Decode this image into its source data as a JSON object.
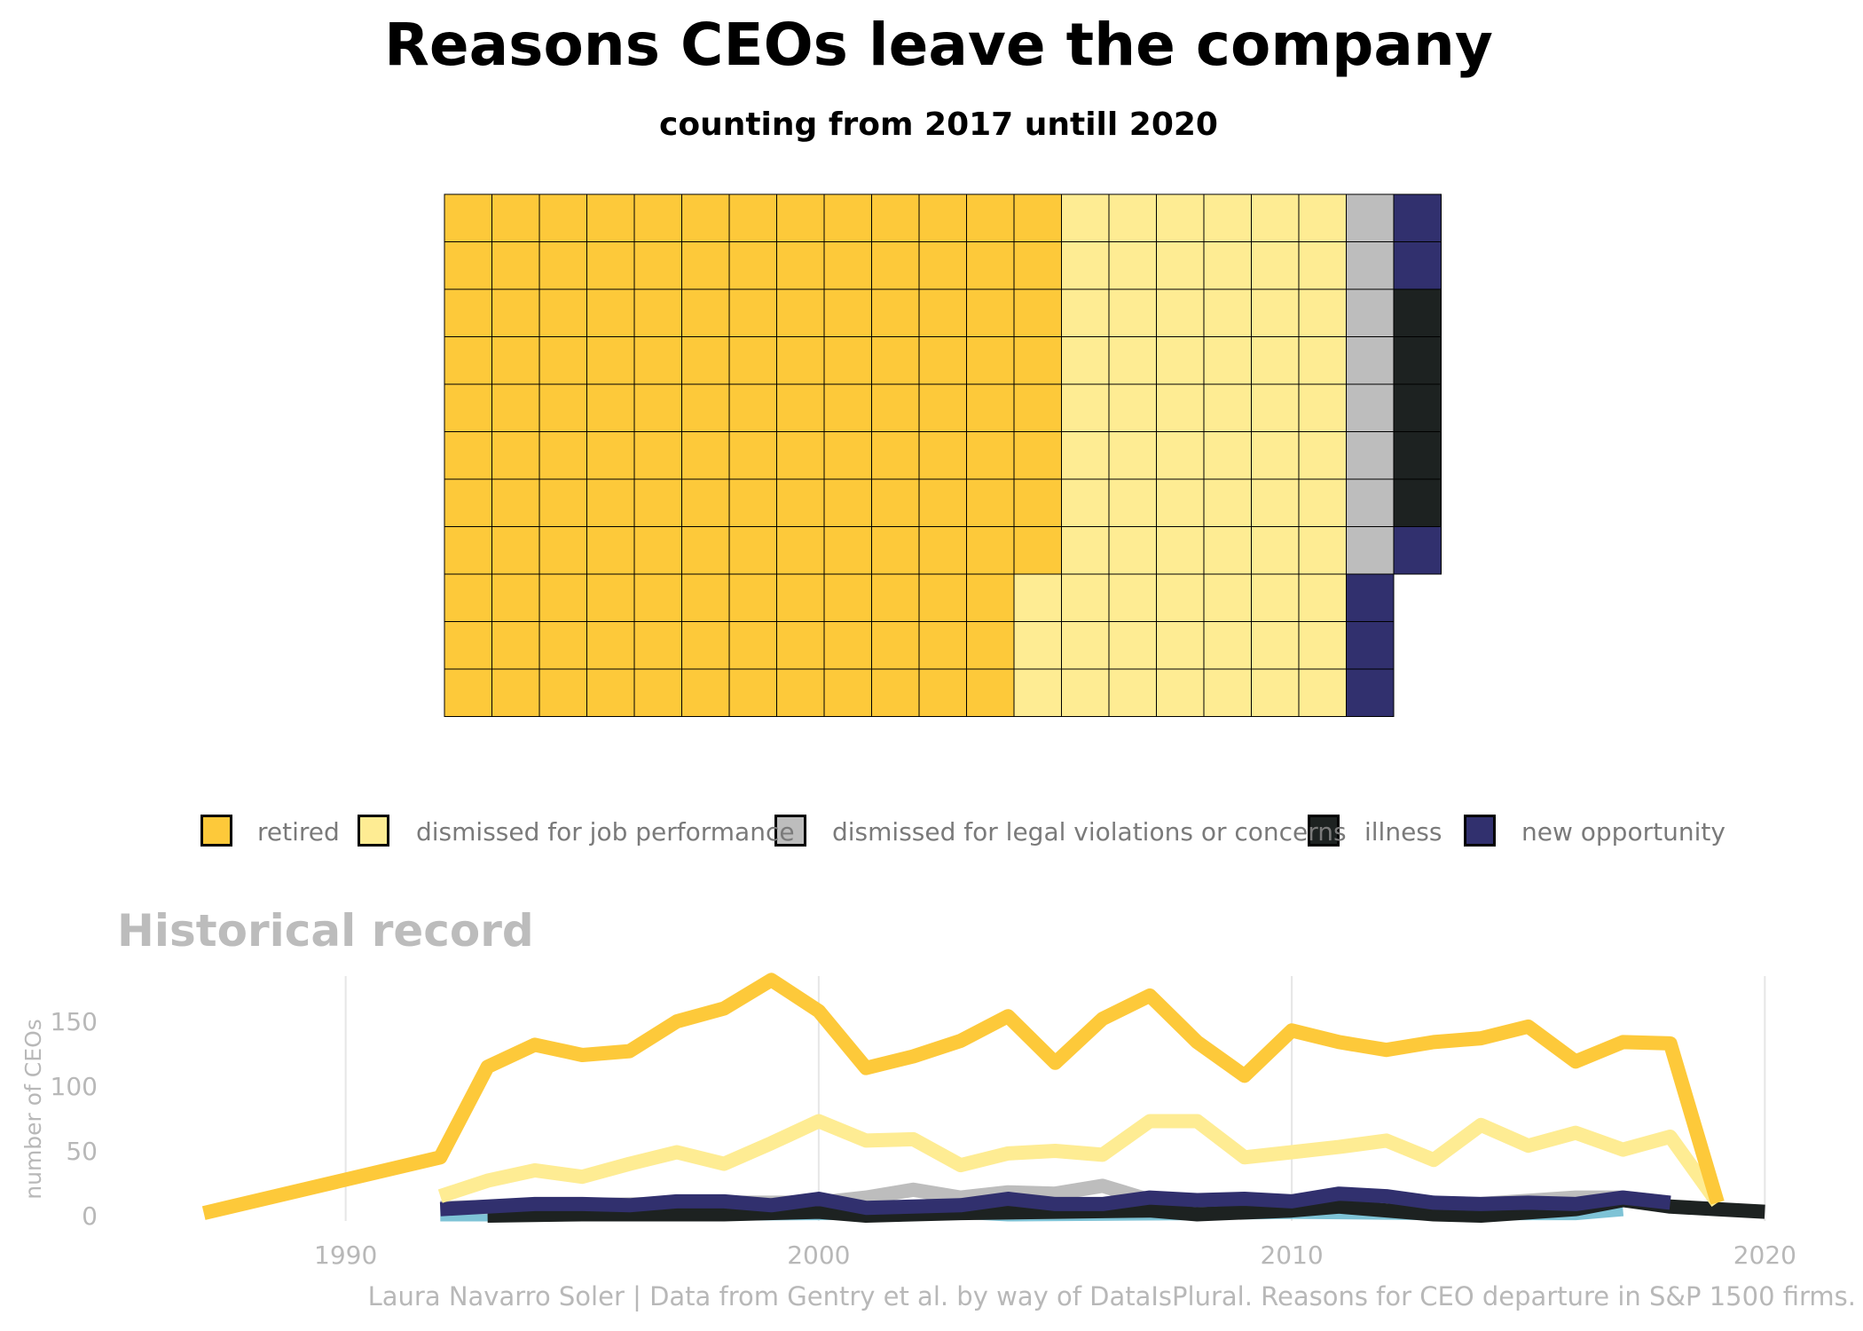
{
  "title": "Reasons CEOs leave the company",
  "subtitle": "counting from 2017 untill 2020",
  "colors": {
    "retired": "#FDC93A",
    "dismissed_job": "#FEEC93",
    "dismissed_legal": "#BDBDBD",
    "illness": "#1D2221",
    "new_opportunity": "#31306E",
    "other": "#7EC3D6"
  },
  "legend": [
    {
      "label": "retired",
      "color": "#FDC93A"
    },
    {
      "label": "dismissed for job performance",
      "color": "#FEEC93"
    },
    {
      "label": "dismissed for legal violations or concerns",
      "color": "#BDBDBD"
    },
    {
      "label": "illness",
      "color": "#1D2221"
    },
    {
      "label": "new opportunity",
      "color": "#31306E"
    }
  ],
  "section_title": "Historical record",
  "caption": "Laura Navarro Soler | Data from Gentry et al. by way of DataIsPlural. Reasons for CEO departure in S&P 1500 firms.",
  "chart_data": [
    {
      "type": "waffle",
      "rows": 11,
      "fill_order": "column-major, top to bottom",
      "categories": [
        "retired",
        "dismissed for job performance",
        "dismissed for legal violations or concerns",
        "new opportunity",
        "illness",
        "new opportunity"
      ],
      "values": [
        140,
        69,
        8,
        5,
        5,
        1
      ],
      "cell_colors": [
        "#FDC93A",
        "#FEEC93",
        "#BDBDBD",
        "#31306E",
        "#1D2221",
        "#31306E"
      ]
    },
    {
      "type": "line",
      "title": "Historical record",
      "ylabel": "number of CEOs",
      "xlabel": "",
      "xlim": [
        1986.8,
        2020.2
      ],
      "ylim": [
        0,
        185
      ],
      "x_ticks": [
        1990,
        2000,
        2010,
        2020
      ],
      "y_ticks": [
        0,
        50,
        100,
        150
      ],
      "grid": "vertical major",
      "series": [
        {
          "color": "#7EC3D6",
          "x": [
            1992,
            1995,
            2000,
            2003,
            2004,
            2008,
            2010,
            2013,
            2016,
            2017
          ],
          "y": [
            1,
            1,
            2,
            3,
            1,
            2,
            3,
            2,
            2,
            5
          ]
        },
        {
          "color": "#BDBDBD",
          "x": [
            1992,
            1995,
            1998,
            2000,
            2001,
            2002,
            2003,
            2004,
            2005,
            2006,
            2007,
            2008,
            2010,
            2012,
            2014,
            2016,
            2017,
            2018
          ],
          "y": [
            6,
            8,
            10,
            10,
            14,
            20,
            14,
            18,
            17,
            23,
            12,
            11,
            9,
            8,
            9,
            14,
            14,
            10
          ]
        },
        {
          "color": "#1D2221",
          "x": [
            1993,
            1995,
            1998,
            2000,
            2001,
            2003,
            2005,
            2007,
            2008,
            2010,
            2011,
            2013,
            2014,
            2016,
            2017,
            2018,
            2019,
            2020
          ],
          "y": [
            0,
            1,
            1,
            3,
            0,
            2,
            3,
            4,
            1,
            4,
            7,
            1,
            0,
            5,
            12,
            7,
            5,
            3
          ]
        },
        {
          "color": "#31306E",
          "x": [
            1992,
            1993,
            1994,
            1995,
            1996,
            1997,
            1998,
            1999,
            2000,
            2001,
            2002,
            2003,
            2004,
            2005,
            2006,
            2007,
            2008,
            2009,
            2010,
            2011,
            2012,
            2013,
            2014,
            2015,
            2016,
            2017,
            2018
          ],
          "y": [
            5,
            7,
            9,
            9,
            8,
            11,
            11,
            8,
            13,
            6,
            7,
            8,
            13,
            9,
            9,
            14,
            12,
            13,
            11,
            17,
            15,
            10,
            9,
            10,
            9,
            14,
            10
          ]
        },
        {
          "color": "#FEEC93",
          "x": [
            1992,
            1993,
            1994,
            1995,
            1996,
            1997,
            1998,
            1999,
            2000,
            2001,
            2002,
            2003,
            2004,
            2005,
            2006,
            2007,
            2008,
            2009,
            2010,
            2011,
            2012,
            2013,
            2014,
            2015,
            2016,
            2017,
            2018,
            2019
          ],
          "y": [
            15,
            27,
            35,
            30,
            40,
            49,
            40,
            56,
            73,
            58,
            59,
            39,
            48,
            50,
            47,
            73,
            73,
            45,
            49,
            53,
            58,
            43,
            70,
            54,
            64,
            51,
            61,
            10
          ]
        },
        {
          "color": "#FDC93A",
          "x": [
            1987,
            1992,
            1993,
            1994,
            1995,
            1996,
            1997,
            1998,
            1999,
            2000,
            2001,
            2002,
            2003,
            2004,
            2005,
            2006,
            2007,
            2008,
            2009,
            2010,
            2011,
            2012,
            2013,
            2014,
            2015,
            2016,
            2017,
            2018,
            2019
          ],
          "y": [
            2,
            45,
            115,
            132,
            124,
            127,
            150,
            160,
            182,
            158,
            114,
            123,
            135,
            154,
            118,
            152,
            170,
            134,
            108,
            143,
            134,
            128,
            134,
            137,
            146,
            119,
            134,
            133,
            10
          ]
        }
      ]
    }
  ]
}
